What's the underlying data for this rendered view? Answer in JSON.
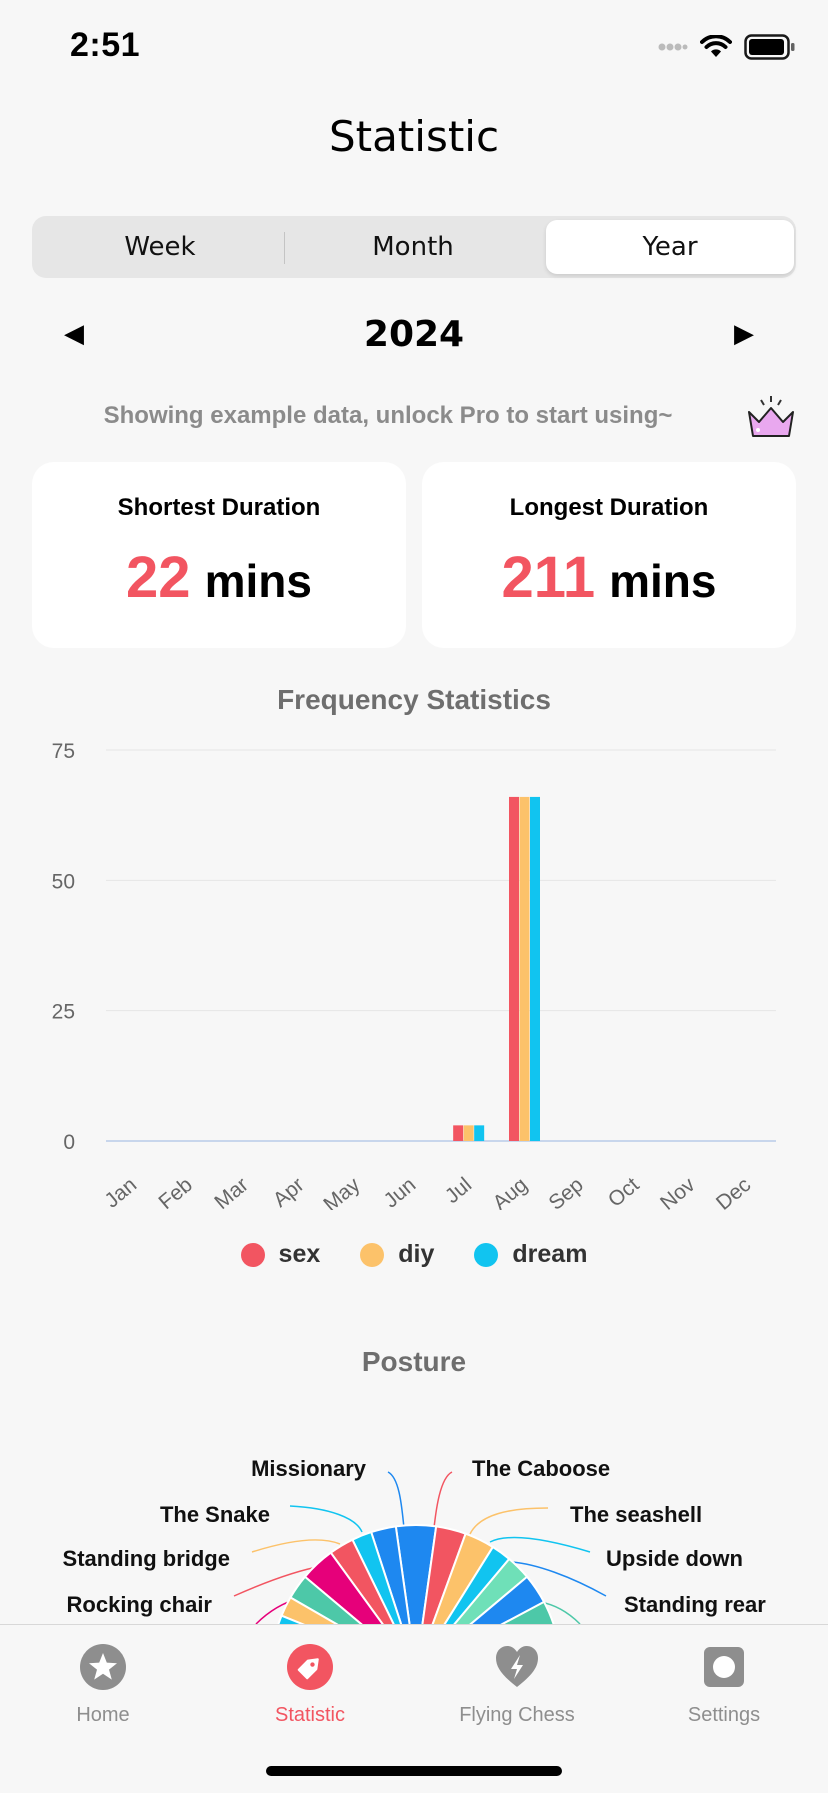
{
  "status_bar": {
    "time": "2:51"
  },
  "page": {
    "title": "Statistic"
  },
  "segmented": {
    "week": "Week",
    "month": "Month",
    "year": "Year",
    "selected": "Year"
  },
  "year_selector": {
    "prev": "◀",
    "year": "2024",
    "next": "▶"
  },
  "pro_banner": {
    "text": "Showing example data, unlock Pro to start using~"
  },
  "cards": {
    "shortest": {
      "title": "Shortest Duration",
      "value": "22",
      "unit": "mins"
    },
    "longest": {
      "title": "Longest Duration",
      "value": "211",
      "unit": "mins"
    }
  },
  "frequency": {
    "title": "Frequency Statistics"
  },
  "legend": [
    {
      "label": "sex",
      "color": "#f25561"
    },
    {
      "label": "diy",
      "color": "#fcc26a"
    },
    {
      "label": "dream",
      "color": "#11c4f0"
    }
  ],
  "chart_data": {
    "type": "bar",
    "title": "Frequency Statistics",
    "categories": [
      "Jan",
      "Feb",
      "Mar",
      "Apr",
      "May",
      "Jun",
      "Jul",
      "Aug",
      "Sep",
      "Oct",
      "Nov",
      "Dec"
    ],
    "yticks": [
      "0",
      "25",
      "50",
      "75"
    ],
    "ylim": [
      0,
      75
    ],
    "grid": true,
    "legend_position": "bottom",
    "series": [
      {
        "name": "sex",
        "color": "#f25561",
        "values": [
          0,
          0,
          0,
          0,
          0,
          0,
          3,
          66,
          0,
          0,
          0,
          0
        ]
      },
      {
        "name": "diy",
        "color": "#fcc26a",
        "values": [
          0,
          0,
          0,
          0,
          0,
          0,
          3,
          66,
          0,
          0,
          0,
          0
        ]
      },
      {
        "name": "dream",
        "color": "#11c4f0",
        "values": [
          0,
          0,
          0,
          0,
          0,
          0,
          3,
          66,
          0,
          0,
          0,
          0
        ]
      }
    ]
  },
  "posture": {
    "title": "Posture",
    "labels_left": [
      "Missionary",
      "The Snake",
      "Standing bridge",
      "Rocking chair"
    ],
    "labels_right": [
      "The Caboose",
      "The seashell",
      "Upside down",
      "Standing rear"
    ]
  },
  "tabbar": {
    "items": [
      {
        "label": "Home",
        "icon": "star-icon"
      },
      {
        "label": "Statistic",
        "icon": "tag-icon"
      },
      {
        "label": "Flying Chess",
        "icon": "heart-bolt-icon"
      },
      {
        "label": "Settings",
        "icon": "settings-icon"
      }
    ],
    "active": "Statistic",
    "active_color": "#f25561",
    "inactive_color": "#8e8e8e"
  }
}
